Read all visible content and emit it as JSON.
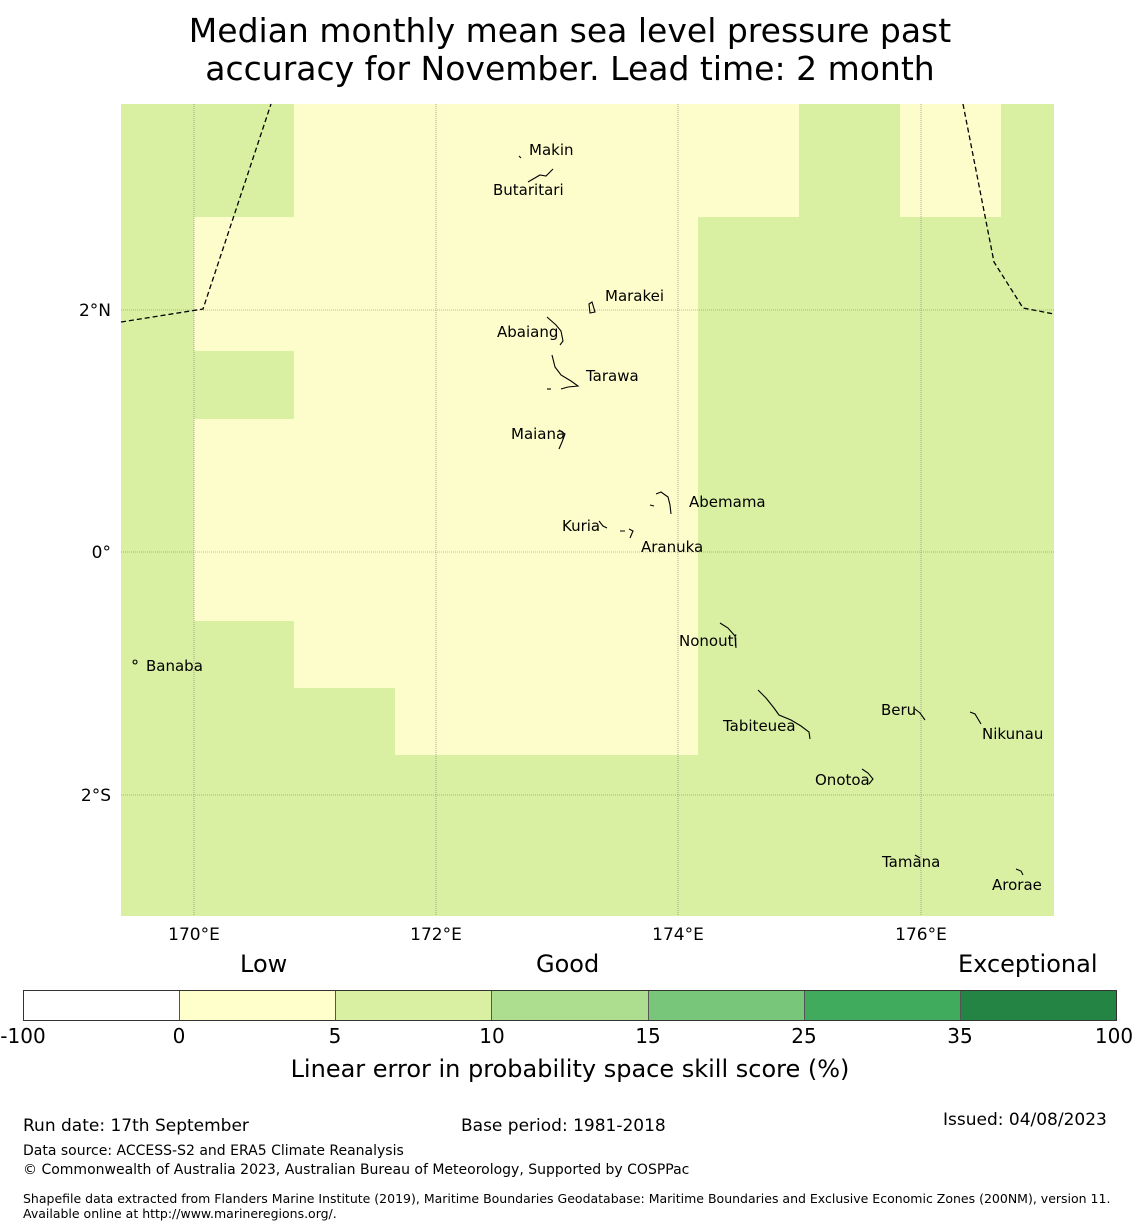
{
  "title_line1": "Median monthly mean sea level pressure past",
  "title_line2": "accuracy for November. Lead time: 2 month",
  "map": {
    "lon_ticks": [
      "170°E",
      "172°E",
      "174°E",
      "176°E"
    ],
    "lat_ticks": [
      "2°N",
      "0°",
      "2°S"
    ],
    "islands": [
      "Makin",
      "Butaritari",
      "Marakei",
      "Abaiang",
      "Tarawa",
      "Maiana",
      "Abemama",
      "Kuria",
      "Aranuka",
      "Nonouti",
      "Banaba",
      "Beru",
      "Nikunau",
      "Tabiteuea",
      "Onotoa",
      "Tamana",
      "Arorae"
    ],
    "colors": {
      "low": "#fdfdcb",
      "good": "#d9f0a3"
    }
  },
  "legend": {
    "categories": [
      "Low",
      "Good",
      "Exceptional"
    ],
    "ticks": [
      "-100",
      "0",
      "5",
      "10",
      "15",
      "25",
      "35",
      "100"
    ],
    "colors": [
      "#ffffff",
      "#ffffcc",
      "#d9f0a3",
      "#addd8e",
      "#78c679",
      "#41ab5d",
      "#238443"
    ],
    "label": "Linear error in probability space skill score (%)"
  },
  "footer": {
    "run_date": "Run date: 17th September",
    "base_period": "Base period: 1981-2018",
    "issued": "Issued: 04/08/2023",
    "data_source": "Data source: ACCESS-S2 and ERA5 Climate Reanalysis",
    "copyright": "© Commonwealth of Australia 2023, Australian Bureau of Meteorology, Supported by COSPPac",
    "shapefile": "Shapefile data extracted from Flanders Marine Institute (2019), Maritime Boundaries Geodatabase: Maritime Boundaries and Exclusive Economic Zones (200NM), version 11. Available online at http://www.marineregions.org/."
  }
}
